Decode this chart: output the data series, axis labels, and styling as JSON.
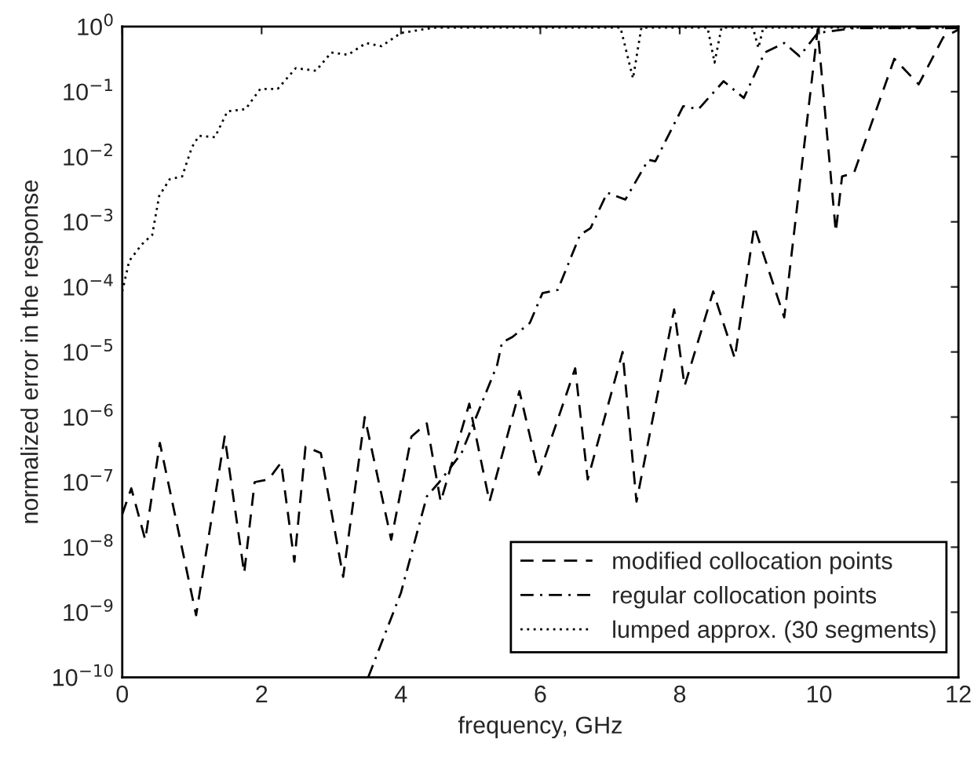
{
  "chart_data": {
    "type": "line",
    "xlabel": "frequency, GHz",
    "ylabel": "normalized error in the response",
    "log": "y",
    "grid": false,
    "legend": "bottom right",
    "marker": "none",
    "xlim": [
      0,
      12
    ],
    "xticks": [
      0,
      2,
      4,
      6,
      8,
      10,
      12
    ],
    "ylim": [
      1e-10,
      1
    ],
    "yticks": [
      {
        "value": 1e-10,
        "label": "10$^{−10}$"
      },
      {
        "value": 1e-09,
        "label": "10$^{−9}$"
      },
      {
        "value": 1e-08,
        "label": "10$^{−8}$"
      },
      {
        "value": 1e-07,
        "label": "10$^{−7}$"
      },
      {
        "value": 1e-06,
        "label": "10$^{−6}$"
      },
      {
        "value": 1e-05,
        "label": "10$^{−5}$"
      },
      {
        "value": 0.0001,
        "label": "10$^{−4}$"
      },
      {
        "value": 0.001,
        "label": "10$^{−3}$"
      },
      {
        "value": 0.01,
        "label": "10$^{−2}$"
      },
      {
        "value": 0.1,
        "label": "10$^{−1}$"
      },
      {
        "value": 1,
        "label": "10$^{0}$"
      }
    ],
    "series": [
      {
        "name": "modified collocation points",
        "color": "#000000",
        "line_style": "dashed",
        "x": [
          0,
          0.13,
          0.33,
          0.54,
          1.06,
          1.47,
          1.75,
          1.9,
          2.1,
          2.28,
          2.47,
          2.63,
          2.85,
          3.17,
          3.48,
          3.86,
          4.15,
          4.37,
          4.57,
          4.98,
          5.27,
          5.7,
          5.98,
          6.5,
          6.68,
          7.18,
          7.38,
          7.92,
          8.07,
          8.48,
          8.79,
          9.07,
          9.5,
          9.98,
          10.24,
          10.33,
          10.5,
          11.08,
          11.43,
          11.78,
          12
        ],
        "values": [
          3.2e-08,
          8e-08,
          1.3e-08,
          4e-07,
          9e-10,
          5e-07,
          4e-09,
          1e-07,
          1.1e-07,
          2e-07,
          6e-09,
          3.5e-07,
          2.8e-07,
          3.5e-09,
          1e-06,
          1.3e-08,
          5e-07,
          8e-07,
          5e-08,
          1.6e-06,
          5e-08,
          2.5e-06,
          1.3e-07,
          5.6e-06,
          1.1e-07,
          1e-05,
          5e-08,
          4.5e-05,
          3e-06,
          8.5e-05,
          8e-06,
          0.00085,
          3.4e-05,
          0.9,
          0.0007,
          0.005,
          0.0056,
          0.32,
          0.13,
          0.68,
          0.9
        ]
      },
      {
        "name": "regular collocation points",
        "color": "#000000",
        "line_style": "dashdot",
        "x": [
          3.53,
          4.0,
          4.37,
          4.55,
          4.87,
          5.38,
          5.45,
          5.6,
          5.85,
          6.03,
          6.25,
          6.57,
          6.72,
          6.96,
          7.22,
          7.55,
          7.65,
          8.05,
          8.27,
          8.63,
          8.92,
          9.22,
          9.5,
          9.72,
          9.98,
          10.5,
          12
        ],
        "values": [
          1e-10,
          2e-09,
          6e-08,
          1e-07,
          2.8e-07,
          6.3e-06,
          1.4e-05,
          1.7e-05,
          2.8e-05,
          8e-05,
          9e-05,
          0.00063,
          0.0008,
          0.0028,
          0.0022,
          0.009,
          0.0085,
          0.06,
          0.054,
          0.145,
          0.08,
          0.4,
          0.56,
          0.35,
          0.8,
          0.95,
          0.95
        ]
      },
      {
        "name": "lumped approx. (30 segments)",
        "color": "#000000",
        "line_style": "dotted",
        "x": [
          0,
          0.1,
          0.28,
          0.43,
          0.53,
          0.68,
          0.86,
          1.0,
          1.1,
          1.33,
          1.51,
          1.77,
          1.98,
          2.23,
          2.49,
          2.78,
          3.0,
          3.24,
          3.5,
          3.72,
          4.0,
          4.3,
          4.5,
          7.15,
          7.33,
          7.45,
          8.4,
          8.5,
          8.6,
          9.05,
          9.13,
          9.2,
          12
        ],
        "values": [
          8.5e-05,
          0.00025,
          0.00045,
          0.00063,
          0.0025,
          0.0045,
          0.005,
          0.014,
          0.021,
          0.02,
          0.05,
          0.054,
          0.11,
          0.11,
          0.23,
          0.21,
          0.4,
          0.37,
          0.56,
          0.5,
          0.8,
          0.9,
          0.97,
          0.97,
          0.16,
          0.97,
          0.97,
          0.28,
          0.97,
          0.97,
          0.47,
          0.97,
          0.97
        ]
      }
    ]
  }
}
